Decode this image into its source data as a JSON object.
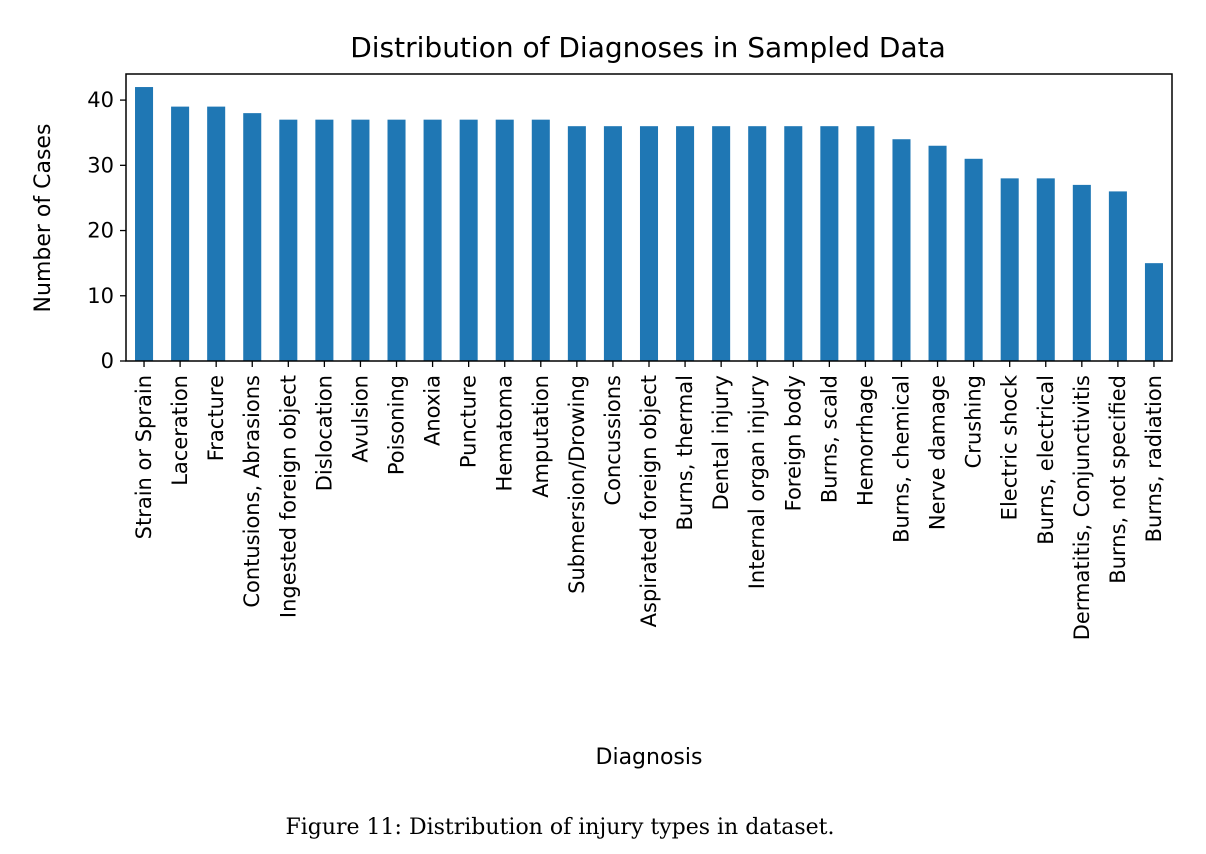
{
  "chart_data": {
    "type": "bar",
    "title": "Distribution of Diagnoses in Sampled Data",
    "xlabel": "Diagnosis",
    "ylabel": "Number of Cases",
    "ylim": [
      0,
      44
    ],
    "yticks": [
      0,
      10,
      20,
      30,
      40
    ],
    "bar_color": "#1f77b4",
    "grid": false,
    "categories": [
      "Strain or Sprain",
      "Laceration",
      "Fracture",
      "Contusions, Abrasions",
      "Ingested foreign object",
      "Dislocation",
      "Avulsion",
      "Poisoning",
      "Anoxia",
      "Puncture",
      "Hematoma",
      "Amputation",
      "Submersion/Drowing",
      "Concussions",
      "Aspirated foreign object",
      "Burns, thermal",
      "Dental injury",
      "Internal organ injury",
      "Foreign body",
      "Burns, scald",
      "Hemorrhage",
      "Burns, chemical",
      "Nerve damage",
      "Crushing",
      "Electric shock",
      "Burns, electrical",
      "Dermatitis, Conjunctivitis",
      "Burns, not specified",
      "Burns, radiation"
    ],
    "values": [
      42,
      39,
      39,
      38,
      37,
      37,
      37,
      37,
      37,
      37,
      37,
      37,
      36,
      36,
      36,
      36,
      36,
      36,
      36,
      36,
      36,
      34,
      33,
      31,
      28,
      28,
      27,
      26,
      15
    ]
  },
  "caption": "Figure 11: Distribution of injury types in dataset."
}
